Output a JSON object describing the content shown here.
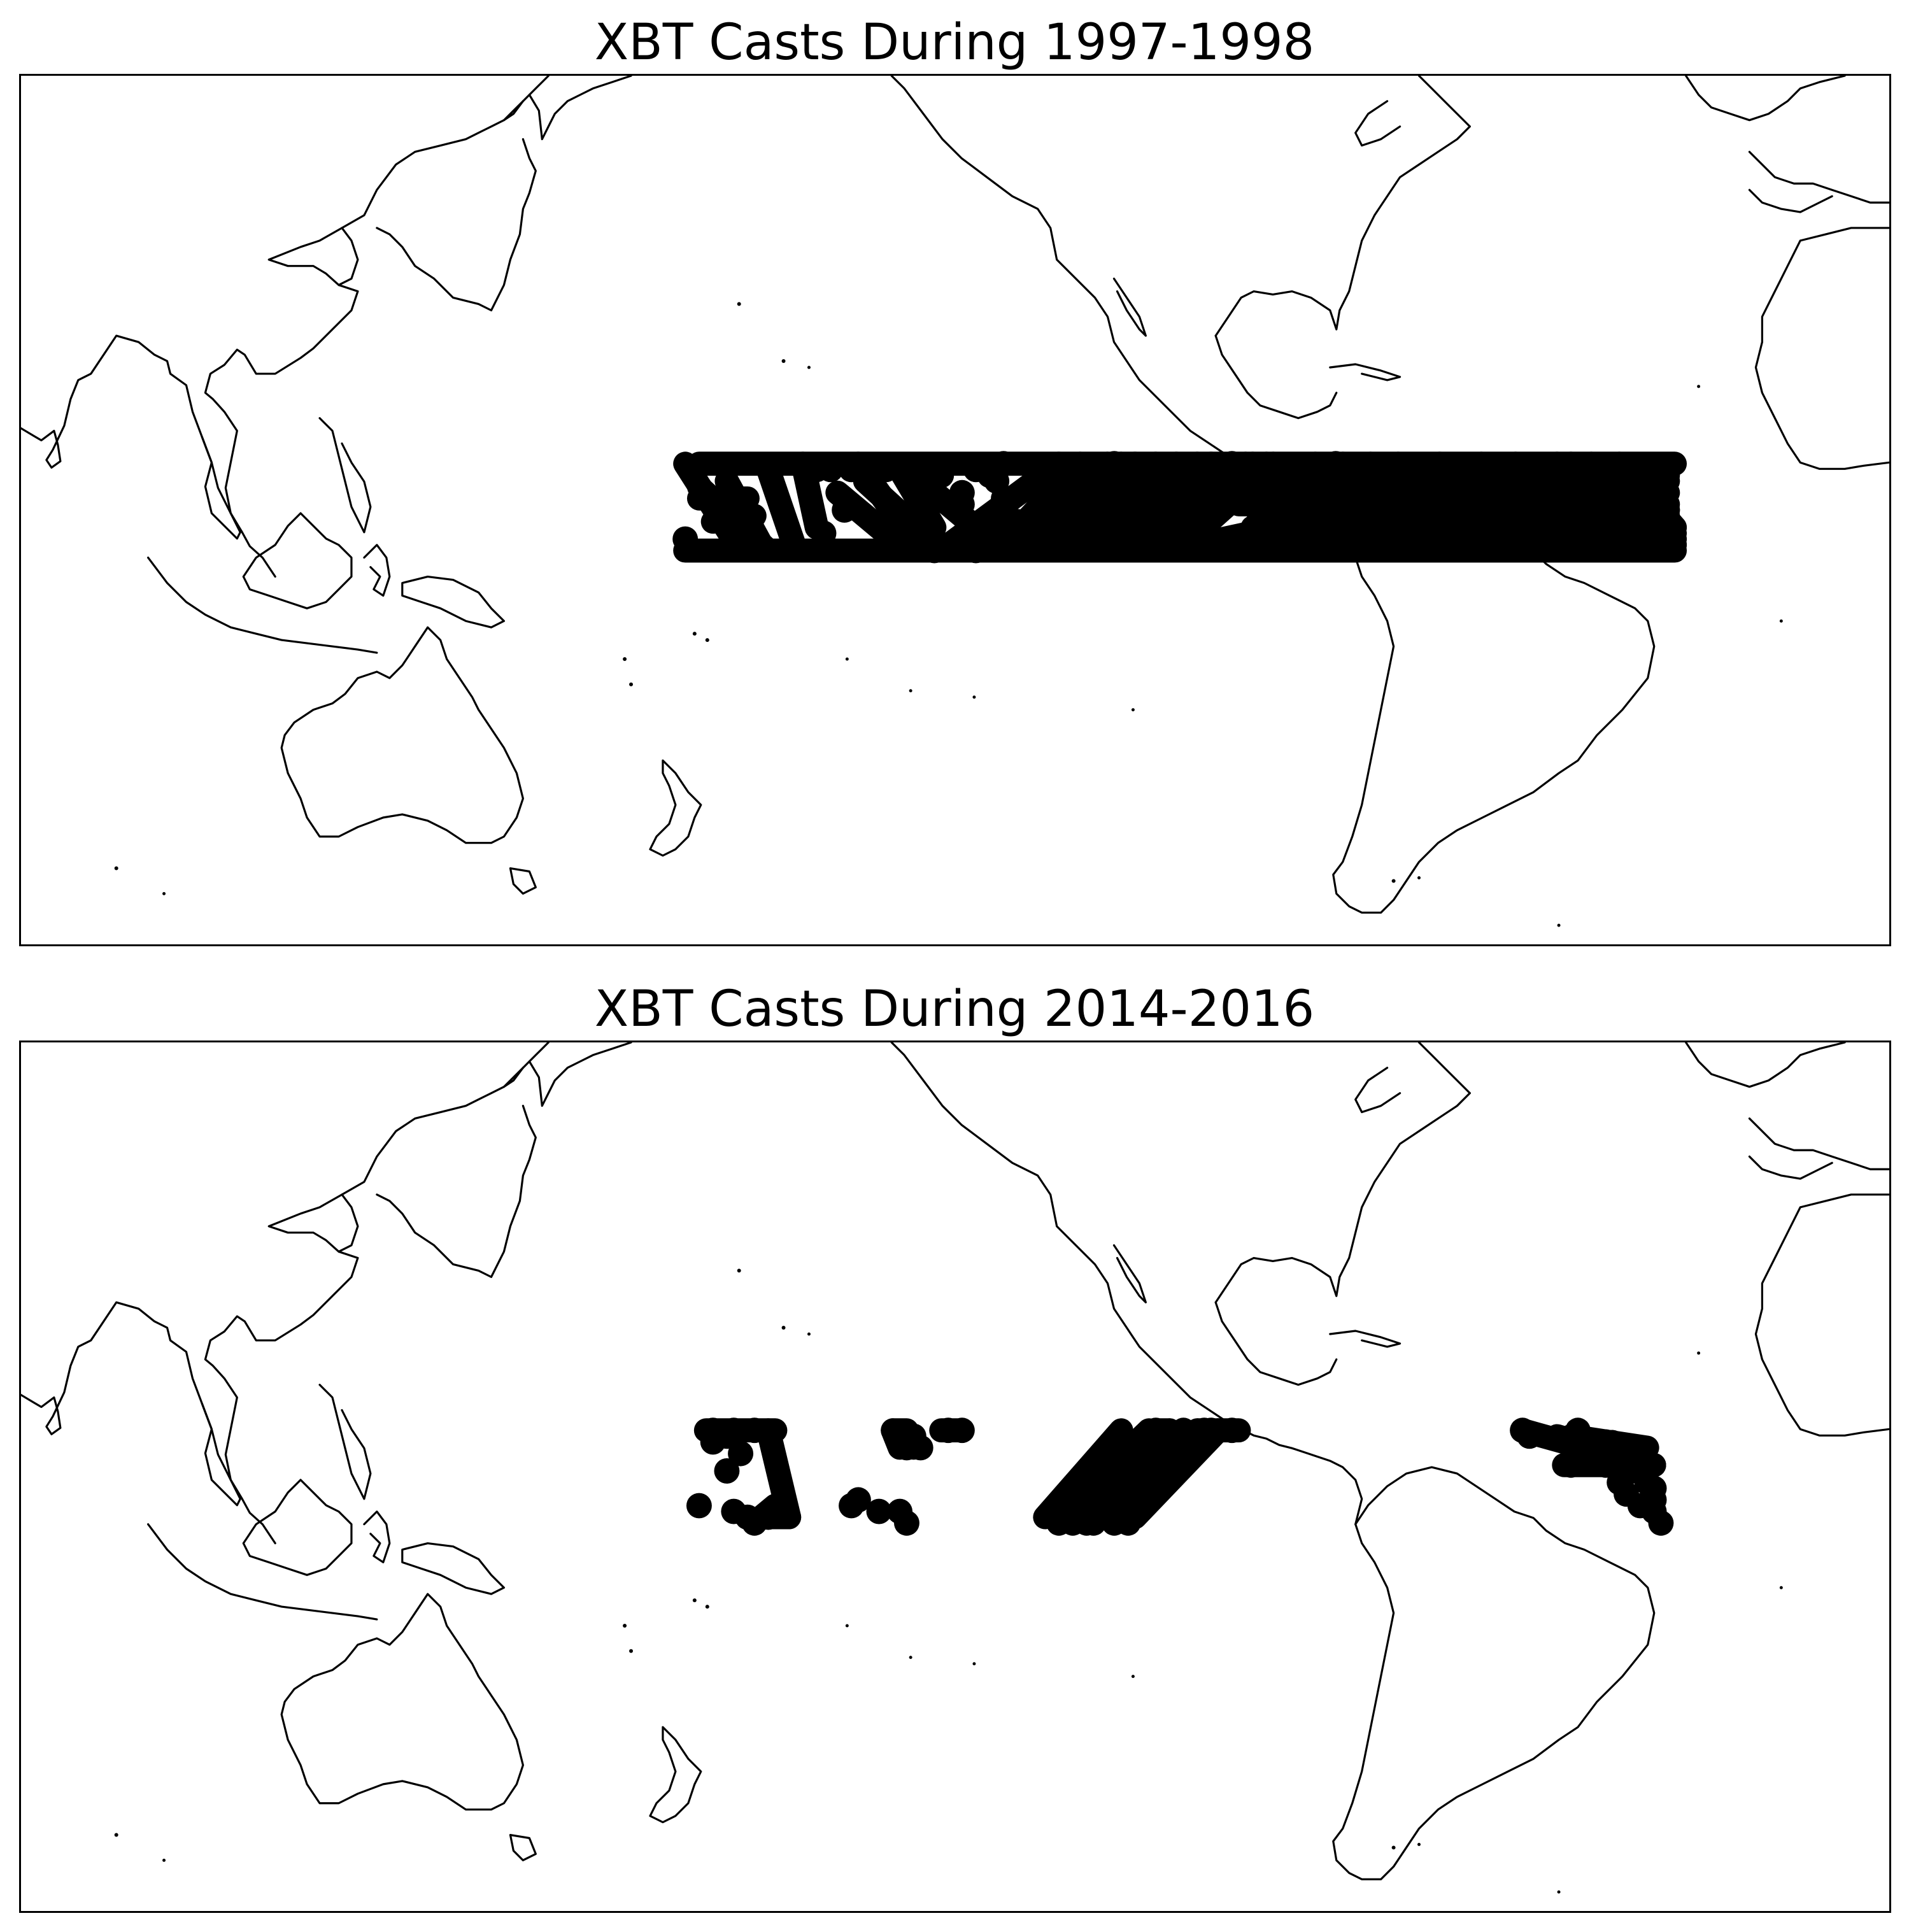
{
  "colors": {
    "marker": "#000000",
    "coastline": "#000000",
    "background": "#ffffff"
  },
  "panels": [
    {
      "title": "XBT Casts During 1997-1998",
      "casts": {
        "tracks": [
          [
            [
              116,
              8
            ],
            [
              124,
              -7
            ]
          ],
          [
            [
              118,
              4
            ],
            [
              128,
              -7
            ]
          ],
          [
            [
              122,
              5
            ],
            [
              127,
              -6
            ]
          ],
          [
            [
              128,
              7
            ],
            [
              132,
              -7
            ]
          ],
          [
            [
              133,
              8
            ],
            [
              135,
              -3
            ]
          ],
          [
            [
              141,
              8
            ],
            [
              150,
              -7
            ]
          ],
          [
            [
              138,
              3
            ],
            [
              148,
              -7
            ]
          ],
          [
            [
              148,
              7
            ],
            [
              162,
              -7
            ]
          ],
          [
            [
              142,
              5
            ],
            [
              153,
              -7
            ]
          ],
          [
            [
              147,
              7
            ],
            [
              152,
              -3
            ]
          ],
          [
            [
              170,
              8
            ],
            [
              153,
              -7
            ]
          ],
          [
            [
              173,
              8
            ],
            [
              162,
              -6
            ]
          ],
          [
            [
              177,
              8
            ],
            [
              165,
              -7
            ]
          ],
          [
            [
              179,
              8
            ],
            [
              167,
              -7
            ]
          ],
          [
            [
              181,
              8
            ],
            [
              165,
              -7
            ]
          ],
          [
            [
              184,
              8
            ],
            [
              167,
              -7
            ]
          ],
          [
            [
              187,
              8
            ],
            [
              170,
              -7
            ]
          ],
          [
            [
              190,
              8
            ],
            [
              172,
              -7
            ]
          ],
          [
            [
              192,
              8
            ],
            [
              176,
              -7
            ]
          ],
          [
            [
              195,
              8
            ],
            [
              179,
              -7
            ]
          ],
          [
            [
              198,
              8
            ],
            [
              183,
              -7
            ]
          ],
          [
            [
              201,
              8
            ],
            [
              187,
              -7
            ]
          ],
          [
            [
              197,
              8
            ],
            [
              229,
              -7
            ]
          ],
          [
            [
              200,
              8
            ],
            [
              232,
              -7
            ]
          ],
          [
            [
              196,
              5
            ],
            [
              223,
              -7
            ]
          ],
          [
            [
              204,
              5
            ],
            [
              236,
              -7
            ]
          ],
          [
            [
              207,
              8
            ],
            [
              241,
              -7
            ]
          ],
          [
            [
              211,
              8
            ],
            [
              246,
              -7
            ]
          ],
          [
            [
              215,
              8
            ],
            [
              251,
              -7
            ]
          ],
          [
            [
              219,
              8
            ],
            [
              256,
              -7
            ]
          ],
          [
            [
              225,
              8
            ],
            [
              258,
              -7
            ]
          ],
          [
            [
              231,
              8
            ],
            [
              259,
              -4
            ]
          ],
          [
            [
              236,
              8
            ],
            [
              258,
              0
            ]
          ],
          [
            [
              242,
              8
            ],
            [
              259,
              -5
            ]
          ],
          [
            [
              247,
              8
            ],
            [
              258,
              -6
            ]
          ],
          [
            [
              251,
              8
            ],
            [
              259,
              -3
            ]
          ],
          [
            [
              255,
              7
            ],
            [
              259,
              -6
            ]
          ],
          [
            [
              186,
              -7
            ],
            [
              244,
              8
            ]
          ],
          [
            [
              193,
              -7
            ],
            [
              250,
              7
            ]
          ],
          [
            [
              200,
              -7
            ],
            [
              254,
              6
            ]
          ],
          [
            [
              210,
              -7
            ],
            [
              258,
              5
            ]
          ],
          [
            [
              220,
              -7
            ],
            [
              258,
              3
            ]
          ],
          [
            [
              232,
              -7
            ],
            [
              258,
              0
            ]
          ],
          [
            [
              192,
              -6
            ],
            [
              246,
              -2
            ]
          ],
          [
            [
              205,
              -7
            ],
            [
              259,
              -3
            ]
          ],
          [
            [
              218,
              -6
            ],
            [
              259,
              -6
            ]
          ],
          [
            [
              196,
              6
            ],
            [
              258,
              6
            ]
          ],
          [
            [
              196,
              1
            ],
            [
              258,
              1
            ]
          ],
          [
            [
              198,
              -3
            ],
            [
              256,
              -4
            ]
          ],
          [
            [
              200,
              -6
            ],
            [
              258,
              -6
            ]
          ],
          [
            [
              214,
              4
            ],
            [
              258,
              -1
            ]
          ],
          [
            [
              118,
              8
            ],
            [
              259,
              8
            ]
          ],
          [
            [
              116,
              -7
            ],
            [
              259,
              -7
            ]
          ],
          [
            [
              118,
              2
            ],
            [
              125,
              2
            ]
          ],
          [
            [
              120,
              -2
            ],
            [
              126,
              -1
            ]
          ]
        ],
        "dots": [
          [
            135,
            7
          ],
          [
            137,
            7
          ],
          [
            140,
            7
          ],
          [
            145,
            7
          ],
          [
            149,
            7
          ],
          [
            153,
            6
          ],
          [
            160,
            6
          ],
          [
            161,
            5
          ],
          [
            156,
            3
          ],
          [
            162,
            2
          ],
          [
            156,
            1
          ],
          [
            164,
            -2
          ],
          [
            161,
            -3
          ],
          [
            170,
            7
          ],
          [
            172,
            6
          ],
          [
            174,
            5
          ],
          [
            178,
            8
          ],
          [
            162,
            8
          ],
          [
            158,
            7
          ],
          [
            167,
            7
          ],
          [
            116,
            -5
          ],
          [
            139,
            0
          ],
          [
            136,
            -4
          ],
          [
            152,
            -7
          ],
          [
            158,
            -7
          ],
          [
            182,
            -4
          ],
          [
            184,
            -5
          ],
          [
            182,
            -1
          ],
          [
            205,
            -3
          ],
          [
            207,
            -1
          ],
          [
            205,
            1
          ],
          [
            208,
            0
          ],
          [
            204,
            4
          ],
          [
            201,
            1
          ],
          [
            195,
            8
          ],
          [
            197,
            7
          ],
          [
            203,
            5
          ],
          [
            198,
            3
          ],
          [
            199,
            -1
          ],
          [
            199,
            -5
          ],
          [
            237,
            -3
          ],
          [
            240,
            -5
          ],
          [
            242,
            -4
          ],
          [
            244,
            -3
          ],
          [
            240,
            -4
          ],
          [
            258,
            -3
          ],
          [
            257,
            -5
          ],
          [
            252,
            -4
          ],
          [
            210,
            8
          ],
          [
            214,
            6
          ],
          [
            217,
            5
          ],
          [
            221,
            5
          ],
          [
            225,
            4
          ],
          [
            229,
            3
          ],
          [
            233,
            4
          ],
          [
            237,
            5
          ],
          [
            241,
            6
          ],
          [
            230,
            7
          ],
          [
            235,
            6
          ],
          [
            242,
            3
          ],
          [
            246,
            2
          ],
          [
            250,
            1
          ],
          [
            227,
            2
          ],
          [
            213,
            3
          ],
          [
            209,
            1
          ],
          [
            213,
            -1
          ],
          [
            220,
            -2
          ],
          [
            224,
            0
          ],
          [
            230,
            1
          ],
          [
            248,
            5
          ],
          [
            252,
            6
          ],
          [
            256,
            3
          ]
        ]
      }
    },
    {
      "title": "XBT Casts During 2014-2016",
      "casts": {
        "tracks": [
          [
            [
              119,
              8
            ],
            [
              129,
              8
            ]
          ],
          [
            [
              128,
              8
            ],
            [
              131,
              -7
            ]
          ],
          [
            [
              131,
              -7
            ],
            [
              127,
              -7
            ]
          ],
          [
            [
              127,
              -7
            ],
            [
              129,
              -5
            ]
          ],
          [
            [
              146,
              8
            ],
            [
              148,
              8
            ]
          ],
          [
            [
              146,
              8
            ],
            [
              147,
              5
            ]
          ],
          [
            [
              149,
              7
            ],
            [
              149,
              5
            ]
          ],
          [
            [
              153,
              8
            ],
            [
              156,
              8
            ]
          ],
          [
            [
              168,
              -7
            ],
            [
              179,
              8
            ]
          ],
          [
            [
              170,
              -7
            ],
            [
              183,
              8
            ]
          ],
          [
            [
              171,
              -7
            ],
            [
              186,
              8
            ]
          ],
          [
            [
              172,
              -7
            ],
            [
              184,
              8
            ]
          ],
          [
            [
              175,
              -7
            ],
            [
              190,
              8
            ]
          ],
          [
            [
              178,
              -7
            ],
            [
              193,
              8
            ]
          ],
          [
            [
              181,
              -7
            ],
            [
              193,
              8
            ]
          ],
          [
            [
              184,
              8
            ],
            [
              186,
              8
            ]
          ],
          [
            [
              190,
              8
            ],
            [
              196,
              8
            ]
          ],
          [
            [
              237,
              8
            ],
            [
              255,
              2
            ]
          ],
          [
            [
              242,
              7
            ],
            [
              256,
              2
            ]
          ],
          [
            [
              244,
              7
            ],
            [
              255,
              5
            ]
          ],
          [
            [
              247,
              5
            ],
            [
              256,
              2
            ]
          ],
          [
            [
              244,
              3
            ],
            [
              256,
              2
            ]
          ],
          [
            [
              243,
              2
            ],
            [
              256,
              2
            ]
          ],
          [
            [
              245,
              4
            ],
            [
              250,
              6
            ]
          ]
        ],
        "dots": [
          [
            120,
            6
          ],
          [
            120,
            8
          ],
          [
            122,
            7
          ],
          [
            123,
            8
          ],
          [
            126,
            8
          ],
          [
            124,
            4
          ],
          [
            122,
            1
          ],
          [
            123,
            -6
          ],
          [
            118,
            -5
          ],
          [
            125,
            -7
          ],
          [
            126,
            -8
          ],
          [
            128,
            -7
          ],
          [
            140,
            -5
          ],
          [
            141,
            -4
          ],
          [
            144,
            -6
          ],
          [
            147,
            -6
          ],
          [
            148,
            -8
          ],
          [
            147,
            7
          ],
          [
            149,
            7
          ],
          [
            148,
            5
          ],
          [
            150,
            5
          ],
          [
            154,
            8
          ],
          [
            156,
            8
          ],
          [
            184,
            8
          ],
          [
            188,
            8
          ],
          [
            191,
            8
          ],
          [
            192,
            8
          ],
          [
            195,
            8
          ],
          [
            170,
            -8
          ],
          [
            172,
            -8
          ],
          [
            174,
            -8
          ],
          [
            175,
            -8
          ],
          [
            178,
            -8
          ],
          [
            180,
            -8
          ],
          [
            237,
            8
          ],
          [
            238,
            7
          ],
          [
            245,
            8
          ],
          [
            249,
            6
          ],
          [
            246,
            5
          ],
          [
            250,
            4
          ],
          [
            247,
            3
          ],
          [
            249,
            2
          ],
          [
            244,
            2
          ],
          [
            251,
            -1
          ],
          [
            252,
            -3
          ],
          [
            255,
            -1
          ],
          [
            256,
            -2
          ],
          [
            254,
            -5
          ],
          [
            256,
            -4
          ],
          [
            256,
            -6
          ],
          [
            257,
            -8
          ],
          [
            254,
            2
          ],
          [
            253,
            1
          ]
        ]
      }
    }
  ]
}
